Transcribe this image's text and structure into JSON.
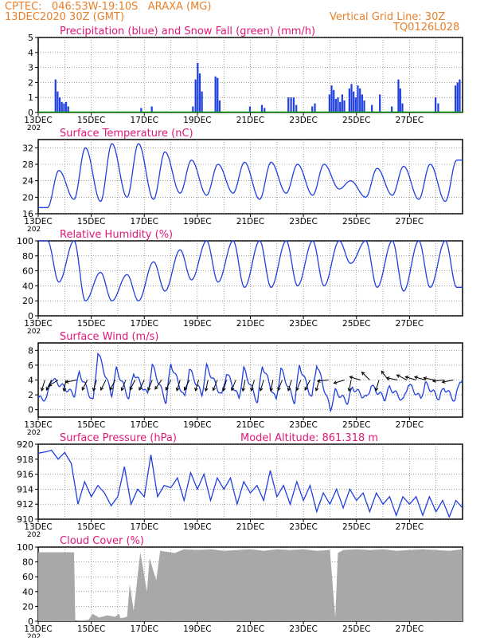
{
  "header": {
    "line1_left": "CPTEC:   046:53W-19:10S   ARAXA (MG)",
    "line2_left": "13DEC2020 30Z (GMT)",
    "line1_right": "Vertical Grid Line: 30Z",
    "line2_right": "TQ0126L028"
  },
  "colors": {
    "header": "#e8802a",
    "title": "#e0187a",
    "line": "#1f3fe0",
    "snow": "#19a019",
    "cloud": "#a8a8a8",
    "wind_arrow": "#000000"
  },
  "x_axis": {
    "labels": [
      "13DEC",
      "15DEC",
      "17DEC",
      "19DEC",
      "21DEC",
      "23DEC",
      "25DEC",
      "27DEC"
    ],
    "year_label": "202"
  },
  "chart_data": [
    {
      "id": "precip",
      "type": "bar",
      "title": "Precipitation (blue) and Snow Fall (green) (mm/h)",
      "ylim": [
        0,
        5
      ],
      "yticks": [
        0,
        1,
        2,
        3,
        4,
        5
      ],
      "series_color": "line",
      "snow_values_all_zero": true,
      "events": [
        {
          "day": 0.62,
          "value": 2.2
        },
        {
          "day": 0.7,
          "value": 1.4
        },
        {
          "day": 0.78,
          "value": 1.0
        },
        {
          "day": 0.86,
          "value": 0.7
        },
        {
          "day": 0.94,
          "value": 0.6
        },
        {
          "day": 1.02,
          "value": 0.7
        },
        {
          "day": 1.1,
          "value": 0.4
        },
        {
          "day": 3.85,
          "value": 0.3
        },
        {
          "day": 4.25,
          "value": 0.4
        },
        {
          "day": 5.8,
          "value": 0.4
        },
        {
          "day": 5.9,
          "value": 2.2
        },
        {
          "day": 5.98,
          "value": 3.3
        },
        {
          "day": 6.06,
          "value": 2.6
        },
        {
          "day": 6.14,
          "value": 1.4
        },
        {
          "day": 6.65,
          "value": 2.4
        },
        {
          "day": 6.73,
          "value": 2.3
        },
        {
          "day": 6.81,
          "value": 0.8
        },
        {
          "day": 7.95,
          "value": 0.4
        },
        {
          "day": 8.4,
          "value": 0.5
        },
        {
          "day": 8.5,
          "value": 0.3
        },
        {
          "day": 9.4,
          "value": 1.0
        },
        {
          "day": 9.5,
          "value": 1.0
        },
        {
          "day": 9.6,
          "value": 1.0
        },
        {
          "day": 9.7,
          "value": 0.5
        },
        {
          "day": 10.3,
          "value": 0.4
        },
        {
          "day": 10.4,
          "value": 0.6
        },
        {
          "day": 10.95,
          "value": 1.2
        },
        {
          "day": 11.03,
          "value": 1.8
        },
        {
          "day": 11.11,
          "value": 1.5
        },
        {
          "day": 11.19,
          "value": 0.9
        },
        {
          "day": 11.27,
          "value": 1.0
        },
        {
          "day": 11.35,
          "value": 0.7
        },
        {
          "day": 11.43,
          "value": 1.2
        },
        {
          "day": 11.51,
          "value": 0.8
        },
        {
          "day": 11.7,
          "value": 1.6
        },
        {
          "day": 11.78,
          "value": 1.9
        },
        {
          "day": 11.86,
          "value": 1.4
        },
        {
          "day": 11.94,
          "value": 1.0
        },
        {
          "day": 12.02,
          "value": 1.8
        },
        {
          "day": 12.1,
          "value": 1.6
        },
        {
          "day": 12.18,
          "value": 1.2
        },
        {
          "day": 12.26,
          "value": 0.8
        },
        {
          "day": 12.55,
          "value": 0.5
        },
        {
          "day": 12.85,
          "value": 1.2
        },
        {
          "day": 13.3,
          "value": 0.4
        },
        {
          "day": 13.55,
          "value": 2.2
        },
        {
          "day": 13.62,
          "value": 1.6
        },
        {
          "day": 13.7,
          "value": 0.6
        },
        {
          "day": 14.95,
          "value": 1.0
        },
        {
          "day": 15.05,
          "value": 0.6
        },
        {
          "day": 15.7,
          "value": 1.8
        },
        {
          "day": 15.78,
          "value": 2.0
        },
        {
          "day": 15.86,
          "value": 2.2
        }
      ]
    },
    {
      "id": "temp",
      "type": "line",
      "title": "Surface Temperature (nC)",
      "ylim": [
        16,
        34
      ],
      "yticks": [
        16,
        20,
        24,
        28,
        32
      ],
      "series": [
        {
          "day_mins": [
            0.35,
            1.35,
            2.35,
            3.35,
            4.35,
            5.35,
            6.35,
            7.35,
            8.35,
            9.35,
            10.35,
            11.35,
            12.35,
            13.35,
            14.35,
            15.35
          ],
          "mins": [
            17.5,
            19.5,
            19.0,
            20.0,
            19.5,
            21.0,
            20.5,
            21.0,
            19.5,
            21.0,
            20.5,
            22.0,
            20.0,
            20.5,
            19.5,
            19.0
          ],
          "day_maxs": [
            0.78,
            1.78,
            2.78,
            3.78,
            4.78,
            5.78,
            6.78,
            7.78,
            8.78,
            9.78,
            10.78,
            11.78,
            12.78,
            13.78,
            14.78,
            15.78
          ],
          "maxs": [
            26.5,
            32.0,
            33.0,
            33.0,
            31.0,
            29.0,
            28.0,
            28.5,
            28.5,
            28.0,
            28.0,
            24.0,
            27.0,
            27.5,
            28.0,
            29.0
          ]
        }
      ]
    },
    {
      "id": "rh",
      "type": "line",
      "title": "Relative Humidity (%)",
      "ylim": [
        0,
        100
      ],
      "yticks": [
        0,
        20,
        40,
        60,
        80,
        100
      ],
      "series": [
        {
          "day_mins": [
            0.78,
            1.78,
            2.78,
            3.78,
            4.78,
            5.78,
            6.78,
            7.78,
            8.78,
            9.78,
            10.78,
            11.78,
            12.78,
            13.78,
            14.78,
            15.78
          ],
          "mins": [
            45,
            20,
            20,
            20,
            33,
            48,
            45,
            38,
            38,
            40,
            40,
            70,
            38,
            33,
            38,
            38
          ],
          "day_maxs": [
            0.35,
            1.35,
            2.35,
            3.35,
            4.35,
            5.35,
            6.35,
            7.35,
            8.35,
            9.35,
            10.35,
            11.35,
            12.35,
            13.35,
            14.35,
            15.35
          ],
          "maxs": [
            100,
            100,
            58,
            55,
            72,
            88,
            100,
            100,
            100,
            100,
            100,
            100,
            100,
            100,
            100,
            100
          ]
        }
      ]
    },
    {
      "id": "wind",
      "type": "line",
      "title": "Surface Wind (m/s)",
      "ylim": [
        -1,
        9
      ],
      "yticks": [
        0,
        2,
        4,
        6,
        8
      ],
      "peaks_day": [
        0.5,
        1.55,
        2.25,
        2.95,
        3.6,
        4.3,
        5.0,
        5.7,
        6.35,
        7.1,
        7.75,
        8.45,
        9.15,
        9.85,
        10.5,
        11.2,
        11.85,
        12.55,
        13.25,
        13.95,
        14.6,
        15.3,
        15.9
      ],
      "peaks_val": [
        4.2,
        5.0,
        7.8,
        5.5,
        5.0,
        6.0,
        6.2,
        5.5,
        5.8,
        5.0,
        5.5,
        6.0,
        5.5,
        6.0,
        6.2,
        2.5,
        3.0,
        3.2,
        3.0,
        3.5,
        3.5,
        3.0,
        4.0
      ],
      "troughs_val": [
        1.5,
        2.0,
        1.0,
        2.0,
        1.5,
        2.0,
        1.0,
        1.5,
        2.0,
        1.8,
        1.5,
        1.0,
        1.2,
        1.0,
        1.5,
        0.0,
        1.0,
        1.5,
        1.5,
        1.2,
        1.5,
        1.5,
        1.2
      ],
      "arrows": [
        {
          "day": 0.25,
          "dx": -0.3,
          "dy": 1
        },
        {
          "day": 0.5,
          "dx": -0.4,
          "dy": 0.8
        },
        {
          "day": 0.75,
          "dx": -0.8,
          "dy": 0.5
        },
        {
          "day": 1.05,
          "dx": -0.2,
          "dy": 1
        },
        {
          "day": 1.45,
          "dx": -1,
          "dy": 0.2
        },
        {
          "day": 1.85,
          "dx": -0.5,
          "dy": 1
        },
        {
          "day": 2.2,
          "dx": -0.3,
          "dy": 1
        },
        {
          "day": 2.55,
          "dx": -0.5,
          "dy": 1
        },
        {
          "day": 2.9,
          "dx": -0.5,
          "dy": 1
        },
        {
          "day": 3.3,
          "dx": -0.4,
          "dy": 1
        },
        {
          "day": 3.65,
          "dx": -0.5,
          "dy": 1
        },
        {
          "day": 4.0,
          "dx": -0.5,
          "dy": 1
        },
        {
          "day": 4.3,
          "dx": -0.4,
          "dy": 1
        },
        {
          "day": 4.65,
          "dx": -0.7,
          "dy": 1
        },
        {
          "day": 5.0,
          "dx": -0.5,
          "dy": 1
        },
        {
          "day": 5.35,
          "dx": -0.3,
          "dy": 1
        },
        {
          "day": 5.7,
          "dx": -0.5,
          "dy": 1
        },
        {
          "day": 6.05,
          "dx": -0.3,
          "dy": 1
        },
        {
          "day": 6.4,
          "dx": -0.2,
          "dy": 1
        },
        {
          "day": 6.75,
          "dx": -0.4,
          "dy": 1
        },
        {
          "day": 7.1,
          "dx": -0.3,
          "dy": 1
        },
        {
          "day": 7.45,
          "dx": -0.4,
          "dy": 1
        },
        {
          "day": 7.8,
          "dx": -0.2,
          "dy": 1
        },
        {
          "day": 8.15,
          "dx": -0.3,
          "dy": 1
        },
        {
          "day": 8.5,
          "dx": -0.3,
          "dy": 1
        },
        {
          "day": 8.85,
          "dx": -0.2,
          "dy": 1
        },
        {
          "day": 9.2,
          "dx": -0.4,
          "dy": 1
        },
        {
          "day": 9.55,
          "dx": -0.3,
          "dy": 1
        },
        {
          "day": 9.9,
          "dx": -0.4,
          "dy": 1
        },
        {
          "day": 10.25,
          "dx": -0.5,
          "dy": 1
        },
        {
          "day": 10.6,
          "dx": -0.3,
          "dy": 1
        },
        {
          "day": 10.95,
          "dx": -1,
          "dy": 0.1
        },
        {
          "day": 11.55,
          "dx": -1,
          "dy": 0.3
        },
        {
          "day": 11.8,
          "dx": -0.2,
          "dy": 1
        },
        {
          "day": 12.15,
          "dx": -1,
          "dy": -0.3
        },
        {
          "day": 12.5,
          "dx": -0.7,
          "dy": -0.7
        },
        {
          "day": 12.85,
          "dx": -0.3,
          "dy": 1
        },
        {
          "day": 13.2,
          "dx": -0.6,
          "dy": -0.8
        },
        {
          "day": 13.55,
          "dx": -1,
          "dy": -0.2
        },
        {
          "day": 13.9,
          "dx": -1,
          "dy": -0.5
        },
        {
          "day": 14.25,
          "dx": -1,
          "dy": -0.3
        },
        {
          "day": 14.6,
          "dx": -1,
          "dy": -0.3
        },
        {
          "day": 14.95,
          "dx": -1,
          "dy": -0.2
        },
        {
          "day": 15.3,
          "dx": -1,
          "dy": 0.1
        },
        {
          "day": 15.65,
          "dx": -1,
          "dy": 0.2
        }
      ]
    },
    {
      "id": "pres",
      "type": "line",
      "title": "Surface Pressure (hPa)",
      "subtitle": "Model Altitude: 861.318 m",
      "ylim": [
        910,
        920
      ],
      "yticks": [
        910,
        912,
        914,
        916,
        918,
        920
      ],
      "knots_day": [
        0,
        0.3,
        0.5,
        0.75,
        1.0,
        1.25,
        1.5,
        1.75,
        2.0,
        2.25,
        2.5,
        2.75,
        3.0,
        3.25,
        3.5,
        3.75,
        4.0,
        4.25,
        4.5,
        4.75,
        5.0,
        5.25,
        5.5,
        5.75,
        6.0,
        6.25,
        6.5,
        6.75,
        7.0,
        7.25,
        7.5,
        7.75,
        8.0,
        8.25,
        8.5,
        8.75,
        9.0,
        9.25,
        9.5,
        9.75,
        10.0,
        10.25,
        10.5,
        10.75,
        11.0,
        11.25,
        11.5,
        11.75,
        12.0,
        12.25,
        12.5,
        12.75,
        13.0,
        13.25,
        13.5,
        13.75,
        14.0,
        14.25,
        14.5,
        14.75,
        15.0,
        15.25,
        15.5,
        15.75,
        16.0
      ],
      "knots_val": [
        918.8,
        919.0,
        919.2,
        918.0,
        918.9,
        917.4,
        912.0,
        915.0,
        913.0,
        914.5,
        913.5,
        911.8,
        913.0,
        917.0,
        912.0,
        914.0,
        913.0,
        918.6,
        913.0,
        914.5,
        914.2,
        915.5,
        912.5,
        916.2,
        914.0,
        916.0,
        912.5,
        915.5,
        914.0,
        915.5,
        912.0,
        915.0,
        913.5,
        914.5,
        912.5,
        916.5,
        913.0,
        914.5,
        912.0,
        915.0,
        912.5,
        914.5,
        911.0,
        913.5,
        912.0,
        914.0,
        911.5,
        914.0,
        912.5,
        913.5,
        911.0,
        913.5,
        912.0,
        913.0,
        910.5,
        913.0,
        912.0,
        913.0,
        910.5,
        913.0,
        911.0,
        912.5,
        910.3,
        912.5,
        911.5
      ]
    },
    {
      "id": "cloud",
      "type": "area",
      "title": "Cloud Cover (%)",
      "ylim": [
        0,
        100
      ],
      "yticks": [
        0,
        20,
        40,
        60,
        80,
        100
      ],
      "knots_day": [
        0,
        1.35,
        1.36,
        1.9,
        2.05,
        2.25,
        2.3,
        2.6,
        2.9,
        3.05,
        3.1,
        3.35,
        3.45,
        3.6,
        3.85,
        4.1,
        4.2,
        4.45,
        4.6,
        5.15,
        5.5,
        6.0,
        6.5,
        7.0,
        7.5,
        8.0,
        8.5,
        9.0,
        9.5,
        10.0,
        10.5,
        11.0,
        11.2,
        11.3,
        11.5,
        12.0,
        12.5,
        13.0,
        13.5,
        14.0,
        14.5,
        15.0,
        15.5,
        16.0
      ],
      "knots_val": [
        93,
        93,
        0,
        2,
        10,
        6,
        5,
        8,
        6,
        10,
        4,
        6,
        50,
        14,
        93,
        40,
        85,
        55,
        95,
        92,
        97,
        96,
        97,
        95,
        96,
        97,
        95,
        97,
        96,
        97,
        95,
        96,
        5,
        92,
        96,
        97,
        96,
        97,
        95,
        96,
        97,
        96,
        95,
        97
      ]
    }
  ]
}
